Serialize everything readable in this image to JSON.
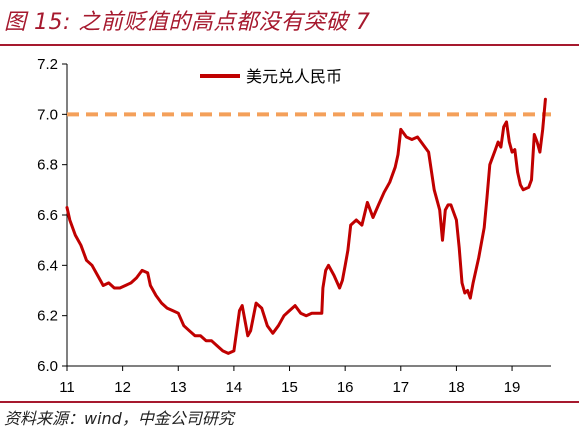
{
  "header": {
    "title": "图 15: 之前贬值的高点都没有突破 7"
  },
  "footer": {
    "source": "资料来源：wind，中金公司研究"
  },
  "colors": {
    "accent": "#a6192e",
    "series": "#c00000",
    "reference": "#f4a05a"
  },
  "chart_data": {
    "type": "line",
    "title": "",
    "xlabel": "",
    "ylabel": "",
    "xlim": [
      11,
      19.7
    ],
    "ylim": [
      6.0,
      7.2
    ],
    "x_ticks": [
      "11",
      "12",
      "13",
      "14",
      "15",
      "16",
      "17",
      "18",
      "19"
    ],
    "y_ticks": [
      "6.0",
      "6.2",
      "6.4",
      "6.6",
      "6.8",
      "7.0",
      "7.2"
    ],
    "grid": false,
    "legend_position": "top-center",
    "reference_lines": [
      {
        "y": 7.0,
        "style": "dashed",
        "color": "#f4a05a"
      }
    ],
    "series": [
      {
        "name": "美元兑人民币",
        "color": "#c00000",
        "x": [
          11.0,
          11.05,
          11.15,
          11.25,
          11.35,
          11.45,
          11.55,
          11.65,
          11.75,
          11.85,
          11.95,
          12.05,
          12.15,
          12.25,
          12.35,
          12.45,
          12.5,
          12.6,
          12.7,
          12.8,
          12.9,
          13.0,
          13.1,
          13.2,
          13.3,
          13.4,
          13.5,
          13.6,
          13.7,
          13.8,
          13.9,
          14.0,
          14.05,
          14.1,
          14.15,
          14.2,
          14.25,
          14.3,
          14.4,
          14.5,
          14.6,
          14.7,
          14.8,
          14.9,
          15.0,
          15.1,
          15.2,
          15.3,
          15.4,
          15.5,
          15.58,
          15.6,
          15.65,
          15.7,
          15.8,
          15.9,
          15.95,
          16.0,
          16.05,
          16.1,
          16.2,
          16.3,
          16.4,
          16.5,
          16.6,
          16.7,
          16.8,
          16.9,
          16.95,
          17.0,
          17.1,
          17.2,
          17.3,
          17.4,
          17.5,
          17.6,
          17.7,
          17.75,
          17.8,
          17.85,
          17.9,
          18.0,
          18.05,
          18.1,
          18.15,
          18.2,
          18.25,
          18.3,
          18.4,
          18.5,
          18.55,
          18.6,
          18.7,
          18.75,
          18.8,
          18.85,
          18.9,
          18.95,
          19.0,
          19.05,
          19.1,
          19.15,
          19.2,
          19.3,
          19.35,
          19.4,
          19.45,
          19.5,
          19.55,
          19.6
        ],
        "values": [
          6.63,
          6.58,
          6.52,
          6.48,
          6.42,
          6.4,
          6.36,
          6.32,
          6.33,
          6.31,
          6.31,
          6.32,
          6.33,
          6.35,
          6.38,
          6.37,
          6.32,
          6.28,
          6.25,
          6.23,
          6.22,
          6.21,
          6.16,
          6.14,
          6.12,
          6.12,
          6.1,
          6.1,
          6.08,
          6.06,
          6.05,
          6.06,
          6.14,
          6.22,
          6.24,
          6.18,
          6.12,
          6.14,
          6.25,
          6.23,
          6.16,
          6.13,
          6.16,
          6.2,
          6.22,
          6.24,
          6.21,
          6.2,
          6.21,
          6.21,
          6.21,
          6.31,
          6.38,
          6.4,
          6.36,
          6.31,
          6.34,
          6.4,
          6.46,
          6.56,
          6.58,
          6.56,
          6.65,
          6.59,
          6.64,
          6.69,
          6.73,
          6.79,
          6.84,
          6.94,
          6.91,
          6.9,
          6.91,
          6.88,
          6.85,
          6.7,
          6.62,
          6.5,
          6.62,
          6.64,
          6.64,
          6.58,
          6.47,
          6.33,
          6.29,
          6.3,
          6.27,
          6.33,
          6.43,
          6.55,
          6.67,
          6.8,
          6.86,
          6.89,
          6.87,
          6.95,
          6.97,
          6.89,
          6.85,
          6.86,
          6.77,
          6.72,
          6.7,
          6.71,
          6.74,
          6.92,
          6.89,
          6.85,
          6.94,
          7.06
        ]
      }
    ]
  }
}
